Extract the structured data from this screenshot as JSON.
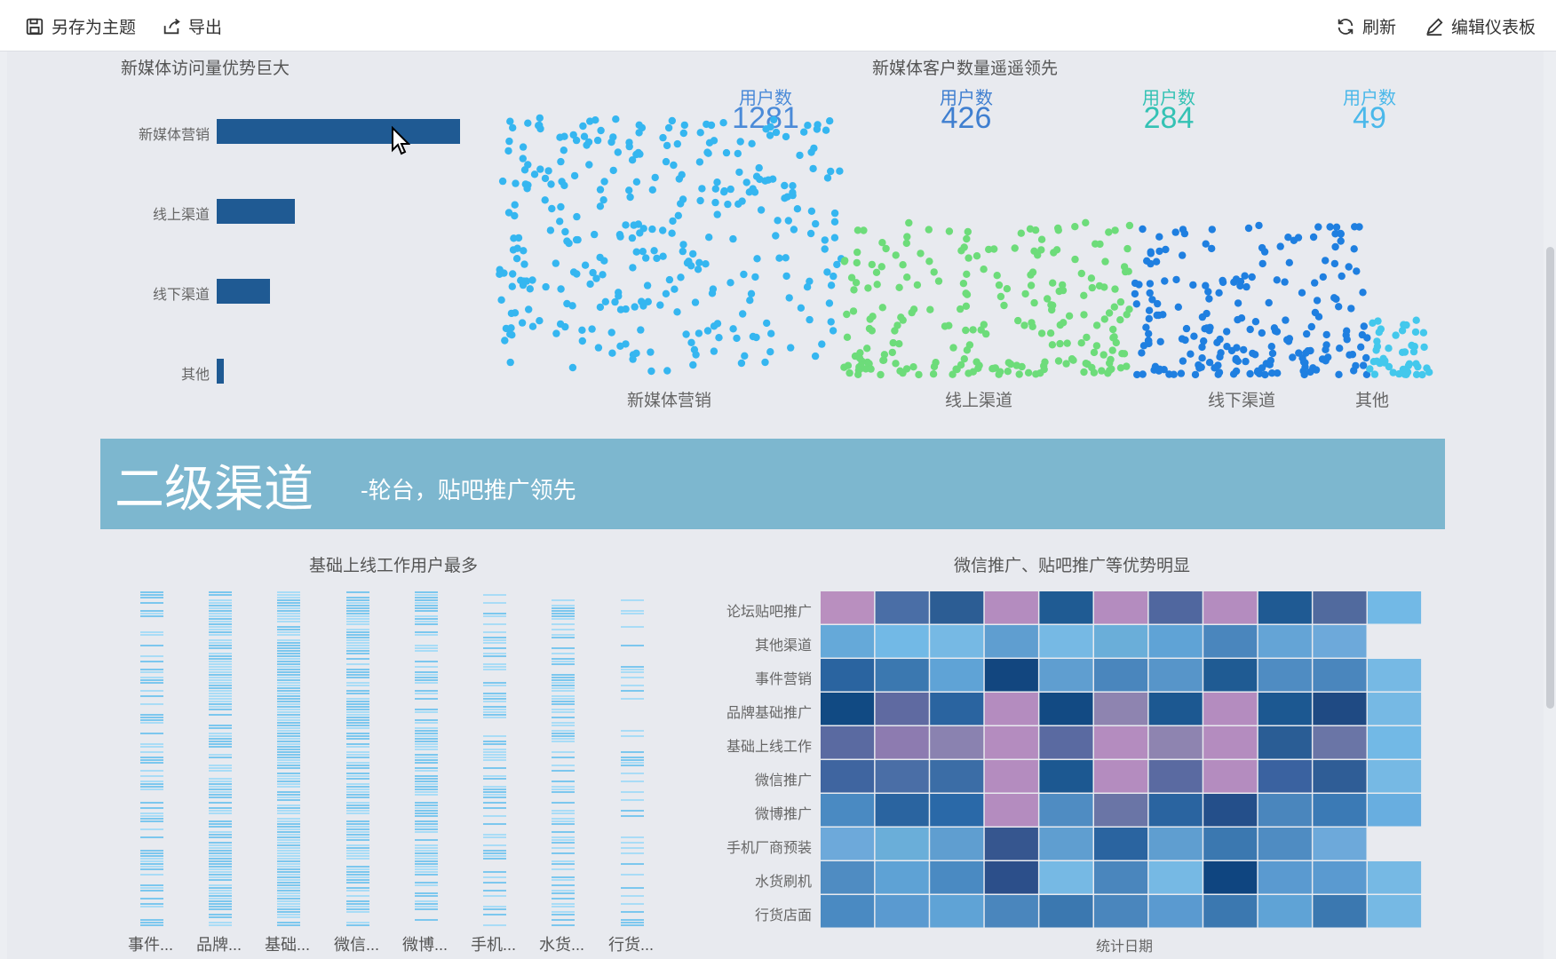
{
  "toolbar": {
    "save_theme": "另存为主题",
    "export": "导出",
    "refresh": "刷新",
    "edit_dashboard": "编辑仪表板"
  },
  "bar_panel": {
    "title": "新媒体访问量优势巨大",
    "chart_data": {
      "type": "bar",
      "orientation": "horizontal",
      "categories": [
        "新媒体营销",
        "线上渠道",
        "线下渠道",
        "其他"
      ],
      "values": [
        100,
        32,
        22,
        3
      ],
      "color": "#1f5a93"
    }
  },
  "scatter_panel": {
    "title": "新媒体客户数量遥遥领先",
    "stats": [
      {
        "label": "用户数",
        "value": "1281",
        "color": "#4a8ad8"
      },
      {
        "label": "用户数",
        "value": "426",
        "color": "#3f7fd0"
      },
      {
        "label": "用户数",
        "value": "284",
        "color": "#34c2b4"
      },
      {
        "label": "用户数",
        "value": "49",
        "color": "#4ab8ea"
      }
    ],
    "chart_data": {
      "type": "scatter",
      "categories": [
        "新媒体营销",
        "线上渠道",
        "线下渠道",
        "其他"
      ],
      "counts": [
        1281,
        426,
        284,
        49
      ],
      "colors": [
        "#35b6f0",
        "#6ddc7a",
        "#1f7fe0",
        "#43c8ec"
      ]
    }
  },
  "banner": {
    "title": "二级渠道",
    "subtitle": "-轮台，贴吧推广领先"
  },
  "strip_panel": {
    "title": "基础上线工作用户最多",
    "chart_data": {
      "type": "bar",
      "categories": [
        "事件...",
        "品牌...",
        "基础...",
        "微信...",
        "微博...",
        "手机...",
        "水货...",
        "行货..."
      ],
      "density": [
        0.55,
        0.85,
        0.95,
        0.8,
        0.65,
        0.5,
        0.55,
        0.35
      ]
    }
  },
  "heatmap_panel": {
    "title": "微信推广、贴吧推广等优势明显",
    "xlabel": "统计日期",
    "chart_data": {
      "type": "heatmap",
      "rows": [
        "论坛贴吧推广",
        "其他渠道",
        "事件营销",
        "品牌基础推广",
        "基础上线工作",
        "微信推广",
        "微博推广",
        "手机厂商预装",
        "水货刷机",
        "行货店面"
      ],
      "cells": [
        [
          "#b98fbf",
          "#4a6ea6",
          "#2c5d94",
          "#b48cbf",
          "#1f5b93",
          "#b48cbf",
          "#50679f",
          "#b48cbf",
          "#1f5a93",
          "#516a9e",
          "#72b9e6"
        ],
        [
          "#65a9d9",
          "#72b9e6",
          "#76b9e4",
          "#5f9ed0",
          "#76b9e4",
          "#6aaed9",
          "#5fa3d6",
          "#4a86bd",
          "#64a4d6",
          "#6da9da",
          ""
        ],
        [
          "#2a64a0",
          "#3b78b0",
          "#5fa3d6",
          "#12467f",
          "#5f9ed0",
          "#4a86bd",
          "#5795c9",
          "#1f5b93",
          "#4f8cc2",
          "#4a86bd",
          "#76b9e4"
        ],
        [
          "#114a83",
          "#5f6aa1",
          "#2a64a0",
          "#b48cbf",
          "#124a83",
          "#8e84b0",
          "#1c5891",
          "#b48cbf",
          "#1c5891",
          "#1f4a83",
          "#76b9e4"
        ],
        [
          "#5a6aa1",
          "#8d7bb0",
          "#8a82b0",
          "#b48cbf",
          "#5a6aa1",
          "#b48cbf",
          "#8e84b0",
          "#b48cbf",
          "#2a5d95",
          "#6a75a6",
          "#72b9e6"
        ],
        [
          "#3f65a0",
          "#4a6ea6",
          "#3b6da6",
          "#b48cbf",
          "#1c5891",
          "#b48cbf",
          "#5a6aa1",
          "#b48cbf",
          "#3a62a0",
          "#2f5d96",
          "#76b9e4"
        ],
        [
          "#4a8ac2",
          "#2a64a0",
          "#2a69a8",
          "#b48cbf",
          "#4f8cc2",
          "#6a75a6",
          "#2a64a0",
          "#244f8a",
          "#4a86bd",
          "#3b7ab5",
          "#68aee0"
        ],
        [
          "#6da9da",
          "#6aaed9",
          "#5f9ed0",
          "#36568f",
          "#5f9ed0",
          "#2a64a0",
          "#5f9ed0",
          "#3b78b0",
          "#4f8cc2",
          "#6da9da",
          ""
        ],
        [
          "#4f8cc2",
          "#5ea2d5",
          "#4a8ac2",
          "#2c4f8a",
          "#76b9e4",
          "#4a86bd",
          "#76b9e4",
          "#0f4580",
          "#5a9ad0",
          "#5a9ad0",
          "#76b9e4"
        ],
        [
          "#4a8ac2",
          "#5a9ad0",
          "#5fa3d6",
          "#4a86bd",
          "#3b78b0",
          "#4a86bd",
          "#5a9ad0",
          "#3b78b0",
          "#5fa3d6",
          "#3b78b0",
          "#76b9e4"
        ]
      ]
    }
  }
}
